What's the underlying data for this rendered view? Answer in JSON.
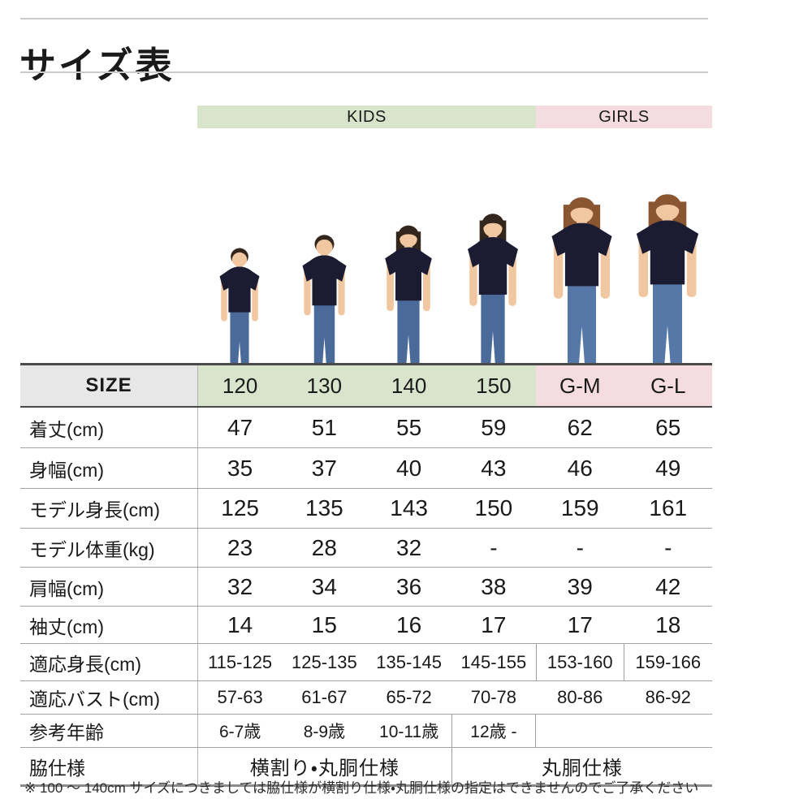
{
  "page": {
    "title": "サイズ表",
    "footnote": "※ 100 ～ 140cm サイズにつきましては脇仕様が横割り仕様・丸胴仕様の指定はできませんのでご了承ください"
  },
  "groups": [
    {
      "label": "KIDS"
    },
    {
      "label": "GIRLS"
    }
  ],
  "table": {
    "size_header": {
      "label": "SIZE",
      "columns": [
        "120",
        "130",
        "140",
        "150",
        "G-M",
        "G-L"
      ]
    },
    "rows": [
      {
        "label": "着丈(cm)",
        "values": [
          "47",
          "51",
          "55",
          "59",
          "62",
          "65"
        ]
      },
      {
        "label": "身幅(cm)",
        "values": [
          "35",
          "37",
          "40",
          "43",
          "46",
          "49"
        ]
      },
      {
        "label": "モデル身長(cm)",
        "values": [
          "125",
          "135",
          "143",
          "150",
          "159",
          "161"
        ]
      },
      {
        "label": "モデル体重(kg)",
        "values": [
          "23",
          "28",
          "32",
          "-",
          "-",
          "-"
        ]
      },
      {
        "label": "肩幅(cm)",
        "values": [
          "32",
          "34",
          "36",
          "38",
          "39",
          "42"
        ]
      },
      {
        "label": "袖丈(cm)",
        "values": [
          "14",
          "15",
          "16",
          "17",
          "17",
          "18"
        ]
      },
      {
        "label": "適応身長(cm)",
        "small": true,
        "gm_borders": true,
        "values": [
          "115-125",
          "125-135",
          "135-145",
          "145-155",
          "153-160",
          "159-166"
        ]
      },
      {
        "label": "適応バスト(cm)",
        "small": true,
        "values": [
          "57-63",
          "61-67",
          "65-72",
          "70-78",
          "80-86",
          "86-92"
        ]
      },
      {
        "label": "参考年齢",
        "type": "age",
        "values": [
          "6-7歳",
          "8-9歳",
          "10-11歳",
          "12歳 -"
        ]
      },
      {
        "label": "脇仕様",
        "type": "span",
        "values": [
          "横割り・丸胴仕様",
          "丸胴仕様"
        ]
      }
    ]
  },
  "models": [
    {
      "size": "120",
      "variant": "boy",
      "hair": "black",
      "desc": "boy in navy t-shirt and jeans"
    },
    {
      "size": "130",
      "variant": "boy",
      "hair": "black",
      "desc": "boy in navy t-shirt and jeans"
    },
    {
      "size": "140",
      "variant": "girl",
      "hair": "black",
      "desc": "girl in navy t-shirt and jeans"
    },
    {
      "size": "150",
      "variant": "girl",
      "hair": "black",
      "desc": "girl in navy t-shirt and jeans"
    },
    {
      "size": "G-M",
      "variant": "woman",
      "hair": "brown",
      "desc": "woman in navy t-shirt and jeans"
    },
    {
      "size": "G-L",
      "variant": "woman",
      "hair": "brown",
      "desc": "woman in navy t-shirt and jeans"
    }
  ],
  "colors": {
    "kids_bg": "#d8e4cb",
    "girls_bg": "#f4dce1",
    "size_cell_bg": "#e7e7e7",
    "tshirt_navy": "#1b1b32",
    "jeans_blue": "#4a6b99",
    "jeans_blue_light": "#5578a8",
    "skin": "#f1c7a2",
    "hair_black": "#33261c",
    "hair_brown": "#8a5531",
    "border_dark": "#4a4a4a",
    "border_light": "#a3a3a3"
  }
}
